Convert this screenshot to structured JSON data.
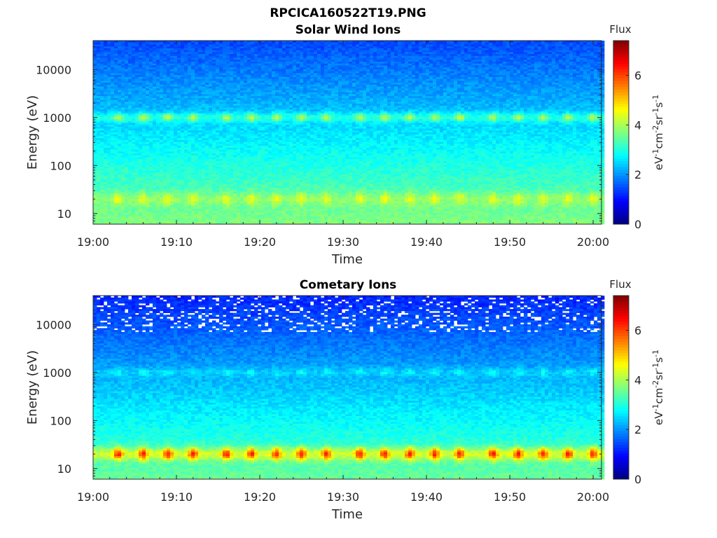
{
  "figure_title": "RPCICA160522T19.PNG",
  "chart_data": [
    {
      "type": "heatmap",
      "title": "Solar Wind Ions",
      "xlabel": "Time",
      "ylabel": "Energy (eV)",
      "x_ticks": [
        "19:00",
        "19:10",
        "19:20",
        "19:30",
        "19:40",
        "19:50",
        "20:00"
      ],
      "xlim": [
        "19:00",
        "20:01"
      ],
      "y_scale": "log",
      "ylim": [
        6,
        40000
      ],
      "y_ticks": [
        "10",
        "100",
        "1000",
        "10000"
      ],
      "colorbar": {
        "label": "Flux",
        "unit_label": "eV-1cm-2sr-1s-1",
        "ticks": [
          "0",
          "2",
          "4",
          "6"
        ],
        "range": [
          0,
          7.4
        ],
        "colormap": "jet"
      },
      "bands": [
        {
          "energy_eV": 20,
          "flux": 4.5,
          "description": "low-energy band"
        },
        {
          "energy_eV": 1000,
          "flux": 4.2,
          "description": "solar wind proton band"
        }
      ],
      "peak_times": [
        "19:03",
        "19:06",
        "19:09",
        "19:12",
        "19:16",
        "19:19",
        "19:22",
        "19:25",
        "19:28",
        "19:32",
        "19:35",
        "19:38",
        "19:41",
        "19:44",
        "19:48",
        "19:51",
        "19:54",
        "19:57",
        "20:00"
      ]
    },
    {
      "type": "heatmap",
      "title": "Cometary Ions",
      "xlabel": "Time",
      "ylabel": "Energy (eV)",
      "x_ticks": [
        "19:00",
        "19:10",
        "19:20",
        "19:30",
        "19:40",
        "19:50",
        "20:00"
      ],
      "xlim": [
        "19:00",
        "20:01"
      ],
      "y_scale": "log",
      "ylim": [
        6,
        40000
      ],
      "y_ticks": [
        "10",
        "100",
        "1000",
        "10000"
      ],
      "colorbar": {
        "label": "Flux",
        "unit_label": "eV-1cm-2sr-1s-1",
        "ticks": [
          "0",
          "2",
          "4",
          "6"
        ],
        "range": [
          0,
          7.4
        ],
        "colormap": "jet"
      },
      "bands": [
        {
          "energy_eV": 20,
          "flux": 6.3,
          "description": "cometary ion band"
        },
        {
          "energy_eV": 1000,
          "flux": 2.8,
          "description": "solar wind proton band"
        }
      ],
      "peak_times": [
        "19:03",
        "19:06",
        "19:09",
        "19:12",
        "19:16",
        "19:19",
        "19:22",
        "19:25",
        "19:28",
        "19:32",
        "19:35",
        "19:38",
        "19:41",
        "19:44",
        "19:48",
        "19:51",
        "19:54",
        "19:57",
        "20:00"
      ]
    }
  ]
}
